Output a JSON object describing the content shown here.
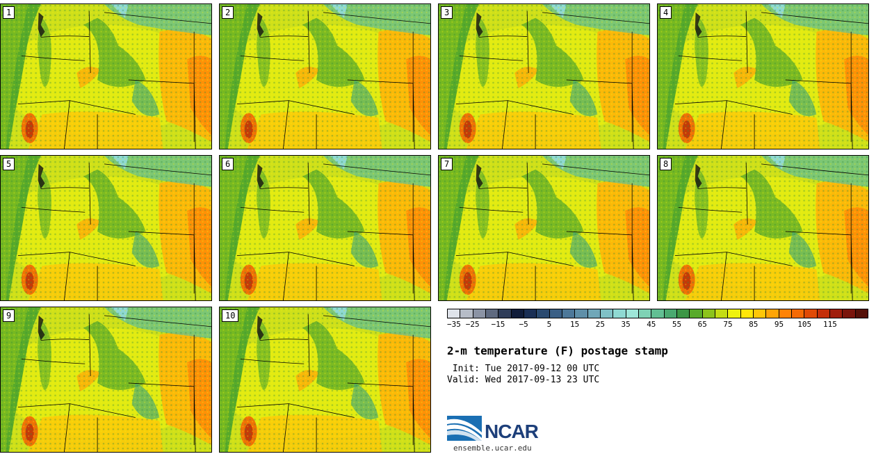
{
  "panels": [
    {
      "label": "1"
    },
    {
      "label": "2"
    },
    {
      "label": "3"
    },
    {
      "label": "4"
    },
    {
      "label": "5"
    },
    {
      "label": "6"
    },
    {
      "label": "7"
    },
    {
      "label": "8"
    },
    {
      "label": "9"
    },
    {
      "label": "10"
    }
  ],
  "colorbar": {
    "colors": [
      "#dfe3ea",
      "#b6bcc7",
      "#8b93a4",
      "#5f6a80",
      "#2f3d59",
      "#101d3a",
      "#1a2f55",
      "#2a4a70",
      "#3a5f85",
      "#4d7899",
      "#5f8fa8",
      "#70a7b8",
      "#80c1c6",
      "#8fd9d2",
      "#9ee6d8",
      "#7fd2b5",
      "#62bf93",
      "#4aa970",
      "#3c9645",
      "#58aa2a",
      "#8cc31c",
      "#c4dc15",
      "#eef20e",
      "#ffe60a",
      "#ffc708",
      "#ffa507",
      "#ff8306",
      "#f56a05",
      "#e04a06",
      "#c42f0a",
      "#a01e0c",
      "#7a150c",
      "#551008"
    ],
    "tick_labels": [
      "−35",
      "−25",
      "−15",
      "−5",
      "5",
      "15",
      "25",
      "35",
      "45",
      "55",
      "65",
      "75",
      "85",
      "95",
      "105",
      "115"
    ]
  },
  "title": "2-m temperature (F) postage stamp",
  "init": " Init: Tue 2017-09-12 00 UTC",
  "valid": "Valid: Wed 2017-09-13 23 UTC",
  "logo": {
    "text": "NCAR",
    "url": "ensemble.ucar.edu"
  }
}
